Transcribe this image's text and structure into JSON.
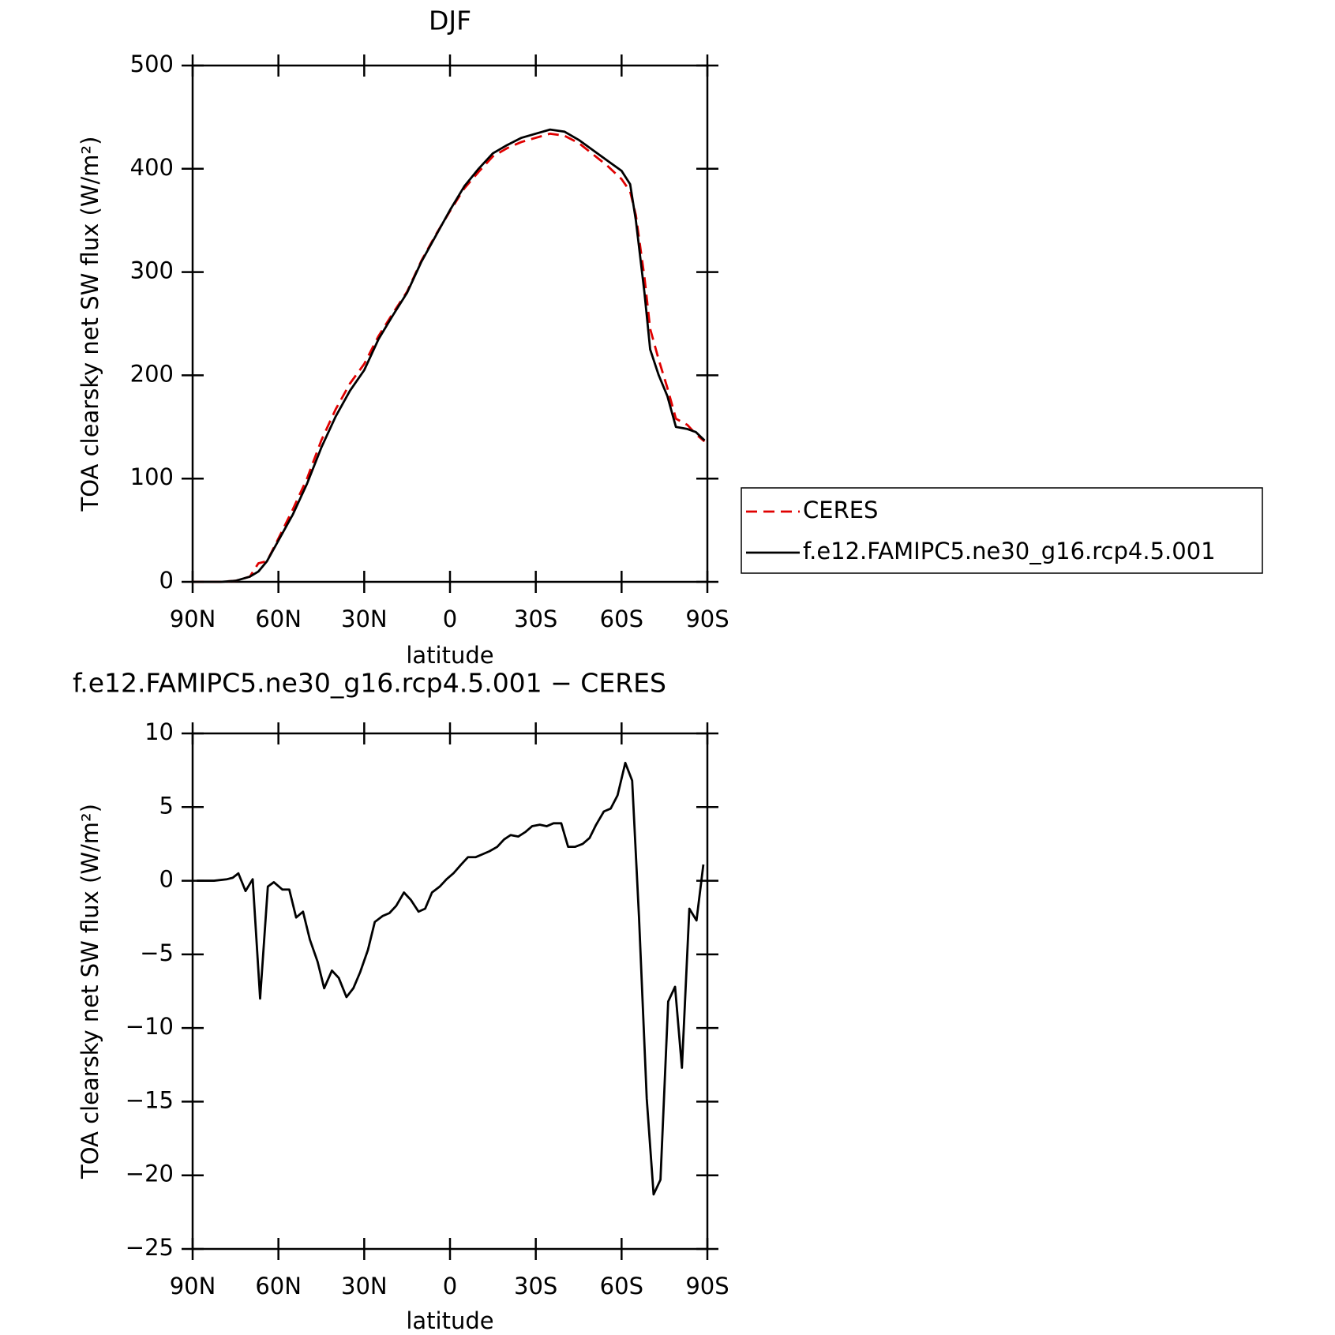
{
  "chart_data": [
    {
      "type": "line",
      "title": "DJF",
      "x_label": "latitude",
      "y_label": "TOA clearsky net SW flux (W/m²)",
      "xlim": [
        90,
        -90
      ],
      "xticks": [
        {
          "value": 90,
          "label": "90N"
        },
        {
          "value": 60,
          "label": "60N"
        },
        {
          "value": 30,
          "label": "30N"
        },
        0,
        {
          "value": -30,
          "label": "30S"
        },
        {
          "value": -60,
          "label": "60S"
        },
        {
          "value": -90,
          "label": "90S"
        }
      ],
      "ylim": [
        0,
        500
      ],
      "yticks": [
        0,
        100,
        200,
        300,
        400,
        500
      ],
      "legend": "right",
      "x": [
        90,
        80,
        75,
        70,
        67,
        64,
        60,
        55,
        50,
        45,
        40,
        35,
        30,
        25,
        20,
        15,
        10,
        5,
        0,
        -5,
        -10,
        -15,
        -20,
        -25,
        -30,
        -35,
        -40,
        -45,
        -50,
        -55,
        -60,
        -63,
        -65,
        -68,
        -70,
        -73,
        -76,
        -79,
        -83,
        -86,
        -89
      ],
      "series": [
        {
          "name": "CERES",
          "color": "#e00000",
          "dashed": true,
          "values": [
            0,
            0,
            1,
            5,
            18,
            20,
            42,
            70,
            100,
            137,
            167,
            192,
            211,
            238,
            260,
            281,
            311,
            336,
            359,
            381,
            397,
            412,
            420,
            426,
            430,
            434,
            432,
            425,
            414,
            403,
            390,
            378,
            355,
            295,
            245,
            215,
            188,
            158,
            152,
            143,
            136
          ]
        },
        {
          "name": "f.e12.FAMIPC5.ne30_g16.rcp4.5.001",
          "color": "#000000",
          "dashed": false,
          "values": [
            0,
            0,
            1,
            5,
            10,
            20,
            40,
            65,
            95,
            130,
            160,
            185,
            205,
            235,
            258,
            280,
            310,
            335,
            360,
            383,
            400,
            415,
            423,
            430,
            434,
            438,
            436,
            428,
            418,
            408,
            398,
            385,
            350,
            280,
            225,
            200,
            180,
            150,
            148,
            145,
            137
          ]
        }
      ]
    },
    {
      "type": "line",
      "title": "f.e12.FAMIPC5.ne30_g16.rcp4.5.001 − CERES",
      "x_label": "latitude",
      "y_label": "TOA clearsky net SW flux (W/m²)",
      "xlim": [
        90,
        -90
      ],
      "xticks": [
        {
          "value": 90,
          "label": "90N"
        },
        {
          "value": 60,
          "label": "60N"
        },
        {
          "value": 30,
          "label": "30N"
        },
        0,
        {
          "value": -30,
          "label": "30S"
        },
        {
          "value": -60,
          "label": "60S"
        },
        {
          "value": -90,
          "label": "90S"
        }
      ],
      "ylim": [
        -25,
        10
      ],
      "yticks": [
        {
          "value": -25,
          "label": "−25"
        },
        {
          "value": -20,
          "label": "−20"
        },
        {
          "value": -15,
          "label": "−15"
        },
        {
          "value": -10,
          "label": "−10"
        },
        {
          "value": -5,
          "label": "−5"
        },
        0,
        5,
        10
      ],
      "x": [
        88.5,
        82.5,
        78,
        76,
        74,
        71.5,
        69,
        66.4,
        63.7,
        61.6,
        58.6,
        56.2,
        53.8,
        51.4,
        49,
        46.3,
        44,
        41.3,
        38.9,
        36.2,
        33.8,
        31.4,
        28.7,
        26.3,
        23.6,
        21.2,
        18.8,
        16.1,
        13.7,
        11,
        8.7,
        6.3,
        3.6,
        1.2,
        -1.2,
        -3.9,
        -6.3,
        -9,
        -11.4,
        -13.8,
        -16.5,
        -18.9,
        -21.2,
        -23.9,
        -26.3,
        -28.7,
        -31.4,
        -33.8,
        -36.2,
        -38.9,
        -41.3,
        -43.7,
        -46.4,
        -48.8,
        -51.1,
        -53.8,
        -56.2,
        -58.6,
        -61.3,
        -63.7,
        -66.1,
        -68.8,
        -71.2,
        -73.6,
        -76.3,
        -78.7,
        -81.1,
        -83.7,
        -86.2,
        -88.6
      ],
      "series": [
        {
          "color": "#000000",
          "dashed": false,
          "values": [
            0,
            0,
            0.1,
            0.2,
            0.5,
            -0.7,
            0.1,
            -8,
            -0.4,
            -0.1,
            -0.6,
            -0.6,
            -2.5,
            -2.1,
            -4,
            -5.5,
            -7.3,
            -6.1,
            -6.6,
            -7.9,
            -7.3,
            -6.2,
            -4.7,
            -2.8,
            -2.4,
            -2.2,
            -1.7,
            -0.8,
            -1.3,
            -2.1,
            -1.9,
            -0.8,
            -0.4,
            0.1,
            0.5,
            1.1,
            1.6,
            1.6,
            1.8,
            2.0,
            2.3,
            2.8,
            3.1,
            3.0,
            3.3,
            3.7,
            3.8,
            3.7,
            3.9,
            3.9,
            2.3,
            2.3,
            2.5,
            2.9,
            3.8,
            4.7,
            4.9,
            5.8,
            8.0,
            6.8,
            -2.5,
            -14.8,
            -21.3,
            -20.3,
            -8.2,
            -7.2,
            -12.7,
            -1.9,
            -2.7,
            1.1
          ]
        }
      ]
    }
  ]
}
